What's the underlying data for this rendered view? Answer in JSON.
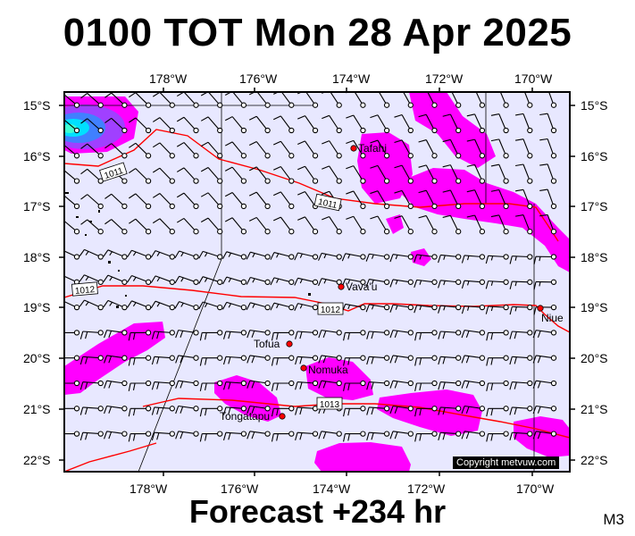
{
  "title": "0100 TOT Mon 28 Apr 2025",
  "footer": "Forecast +234 hr",
  "code": "M3",
  "copyright": "Copyright metvuw.com",
  "colors": {
    "background": "#e8e8ff",
    "precip": "#ff00ff",
    "heavy_precip": "#00e0ff",
    "isobar": "#ff0000",
    "wind_barb": "#000000"
  },
  "axes": {
    "lon_labels": [
      "178°W",
      "176°W",
      "174°W",
      "172°W",
      "170°W"
    ],
    "lat_labels": [
      "15°S",
      "16°S",
      "17°S",
      "18°S",
      "19°S",
      "20°S",
      "21°S",
      "22°S"
    ]
  },
  "isobars": [
    {
      "label": "1011"
    },
    {
      "label": "1011"
    },
    {
      "label": "1012"
    },
    {
      "label": "1012"
    },
    {
      "label": "1013"
    }
  ],
  "places": [
    "Tafahi",
    "Vava'u",
    "Niue",
    "Tofua",
    "Nomuka",
    "Tongatapu"
  ]
}
